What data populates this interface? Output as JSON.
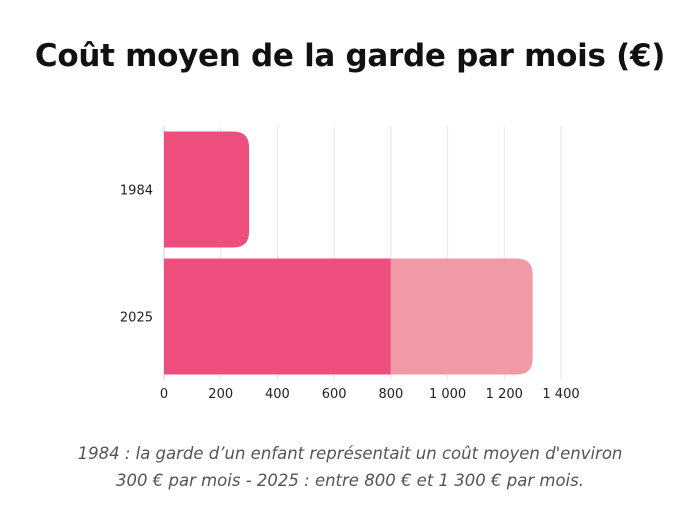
{
  "chart_data": {
    "type": "bar",
    "orientation": "horizontal",
    "stacked": true,
    "title": "Coût moyen de la garde par mois (€)",
    "categories": [
      "1984",
      "2025"
    ],
    "series": [
      {
        "values": [
          300,
          800
        ],
        "color": "#ee4e7d"
      },
      {
        "values": [
          0,
          500
        ],
        "color": "#f09aa6"
      }
    ],
    "xlim": [
      0,
      1400
    ],
    "x_ticks": [
      0,
      200,
      400,
      600,
      800,
      1000,
      1200,
      1400
    ],
    "x_tick_labels": [
      "0",
      "200",
      "400",
      "600",
      "800",
      "1 000",
      "1 200",
      "1 400"
    ],
    "grid": "vertical",
    "legend": "none"
  },
  "note": {
    "line1": "1984 : la garde d’un enfant représentait un coût moyen d'environ",
    "line2": "300 € par mois - 2025 : entre 800 € et 1 300 € par mois."
  }
}
